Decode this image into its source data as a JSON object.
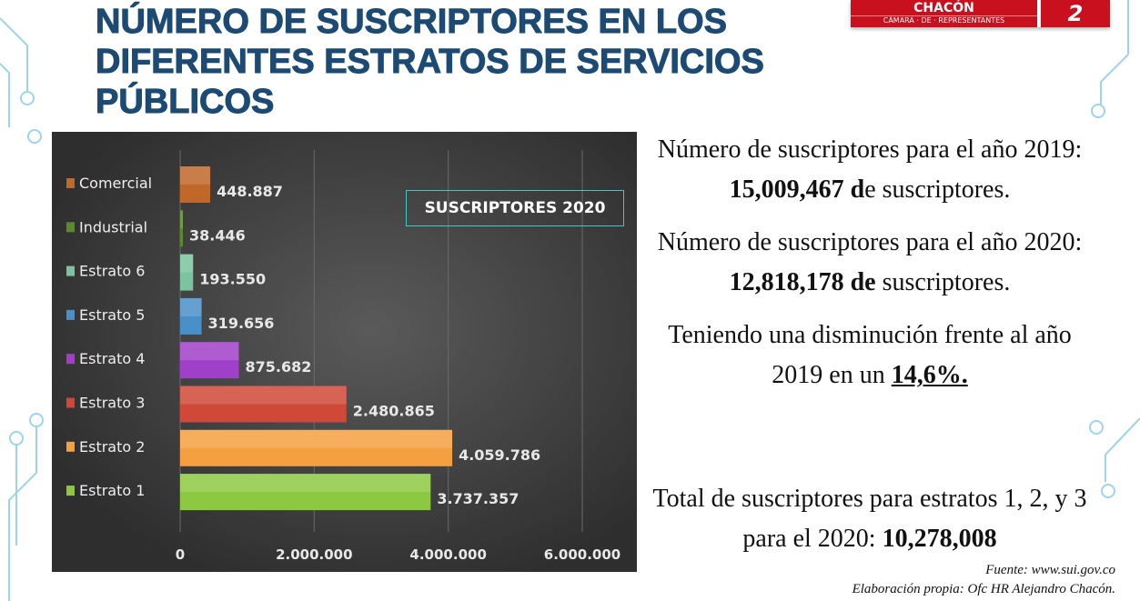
{
  "title": "NÚMERO DE SUSCRIPTORES EN LOS DIFERENTES ESTRATOS DE SERVICIOS PÚBLICOS",
  "logo": {
    "name": "CHACÓN",
    "subtitle": "CÁMARA · DE · REPRESENTANTES",
    "number": "2"
  },
  "chart_data": {
    "type": "bar",
    "orientation": "horizontal",
    "title": "SUSCRIPTORES 2020",
    "categories": [
      "Comercial",
      "Industrial",
      "Estrato 6",
      "Estrato 5",
      "Estrato 4",
      "Estrato 3",
      "Estrato 2",
      "Estrato 1"
    ],
    "values": [
      448887,
      38446,
      193550,
      319656,
      875682,
      2480865,
      4059786,
      3737357
    ],
    "value_labels": [
      "448.887",
      "38.446",
      "193.550",
      "319.656",
      "875.682",
      "2.480.865",
      "4.059.786",
      "3.737.357"
    ],
    "colors": [
      "#c0682a",
      "#5a8a2a",
      "#7cc4a0",
      "#4a90c8",
      "#a040c8",
      "#d04838",
      "#f5a040",
      "#8cc840"
    ],
    "xlim": [
      0,
      6000000
    ],
    "x_ticks": [
      0,
      2000000,
      4000000,
      6000000
    ],
    "x_tick_labels": [
      "0",
      "2.000.000",
      "4.000.000",
      "6.000.000"
    ],
    "grid": true
  },
  "text": {
    "p1_a": "Número de suscriptores para el año 2019: ",
    "p1_b": "15,009,467 d",
    "p1_c": "e suscriptores.",
    "p2_a": "Número de suscriptores para el año 2020: ",
    "p2_b": "12,818,178 de",
    "p2_c": " suscriptores.",
    "p3_a": "Teniendo una disminución frente al año 2019 en un ",
    "p3_b": "14,6%.",
    "p4_a": "Total de suscriptores para estratos 1, 2, y 3 para el 2020:  ",
    "p4_b": "10,278,008",
    "source": "Fuente:  www.sui.gov.co",
    "credit": "Elaboración propia: Ofc HR Alejandro Chacón."
  }
}
